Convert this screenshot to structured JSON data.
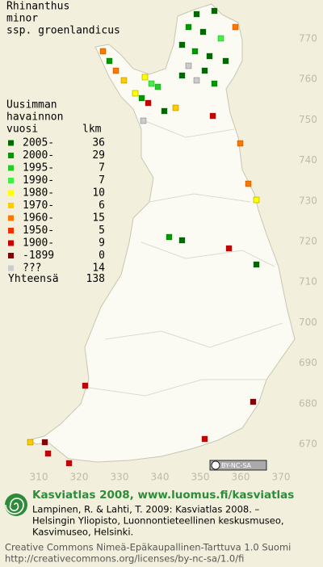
{
  "title": [
    "Rhinanthus",
    "minor",
    "ssp. groenlandicus"
  ],
  "legend": {
    "header": [
      "Uusimman",
      "havainnon",
      "vuosi",
      "lkm"
    ],
    "rows": [
      {
        "label": "2005-",
        "count": 36,
        "color": "#006a00"
      },
      {
        "label": "2000-",
        "count": 29,
        "color": "#009a00"
      },
      {
        "label": "1995-",
        "count": 7,
        "color": "#22cc22"
      },
      {
        "label": "1990-",
        "count": 7,
        "color": "#44ee44"
      },
      {
        "label": "1980-",
        "count": 10,
        "color": "#ffff00"
      },
      {
        "label": "1970-",
        "count": 6,
        "color": "#ffcc00"
      },
      {
        "label": "1960-",
        "count": 15,
        "color": "#ff7700"
      },
      {
        "label": "1950-",
        "count": 5,
        "color": "#ee3300"
      },
      {
        "label": "1900-",
        "count": 9,
        "color": "#cc0000"
      },
      {
        "label": "-1899",
        "count": 0,
        "color": "#880000"
      },
      {
        "label": "???",
        "count": 14,
        "color": "#cccccc"
      }
    ],
    "total": {
      "label": "Yhteensä",
      "count": 138
    }
  },
  "map": {
    "y_ticks": [
      770,
      760,
      750,
      740,
      730,
      720,
      710,
      700,
      690,
      680,
      670
    ],
    "x_ticks": [
      310,
      320,
      330,
      340,
      350,
      360,
      370
    ],
    "license_badge": "BY-NC-SA"
  },
  "footer": {
    "site": "Kasviatlas 2008, www.luomus.fi/kasviatlas",
    "citation": [
      "Lampinen, R. & Lahti, T. 2009: Kasviatlas 2008. –",
      "Helsingin Yliopisto, Luonnontieteellinen keskusmuseo,",
      "Kasvimuseo, Helsinki."
    ],
    "license": [
      "Creative Commons Nimeä-Epäkaupallinen-Tarttuva 1.0 Suomi",
      "http://creativecommons.org/licenses/by-nc-sa/1.0/fi"
    ]
  }
}
